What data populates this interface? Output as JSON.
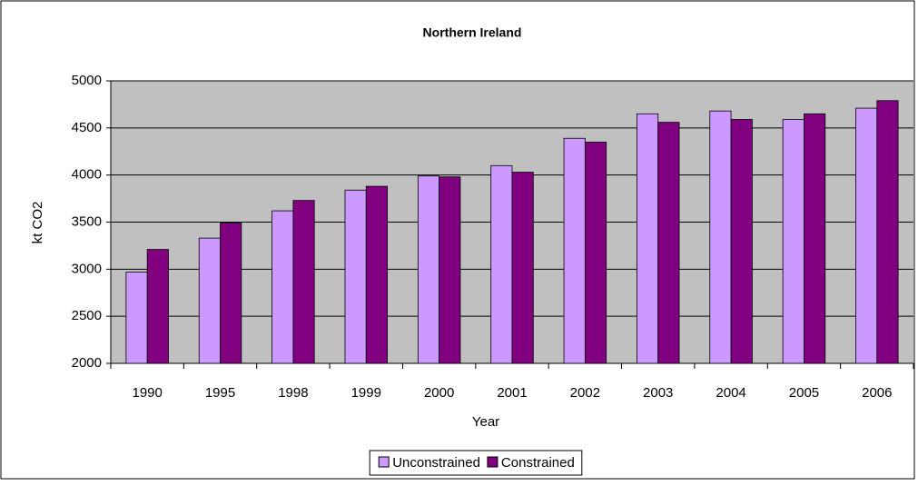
{
  "chart_data": {
    "type": "bar",
    "title": "Northern Ireland",
    "x_label": "Year",
    "y_label": "kt CO2",
    "categories": [
      "1990",
      "1995",
      "1998",
      "1999",
      "2000",
      "2001",
      "2002",
      "2003",
      "2004",
      "2005",
      "2006"
    ],
    "series": [
      {
        "name": "Unconstrained",
        "color": "#cc99ff",
        "values": [
          2970,
          3330,
          3620,
          3840,
          3990,
          4100,
          4390,
          4650,
          4680,
          4590,
          4710
        ]
      },
      {
        "name": "Constrained",
        "color": "#800080",
        "values": [
          3210,
          3490,
          3730,
          3880,
          3980,
          4030,
          4350,
          4560,
          4590,
          4650,
          4790
        ]
      }
    ],
    "ylim": [
      2000,
      5000
    ],
    "yticks": [
      2000,
      2500,
      3000,
      3500,
      4000,
      4500,
      5000
    ],
    "grid": true,
    "legend": "bottom"
  }
}
